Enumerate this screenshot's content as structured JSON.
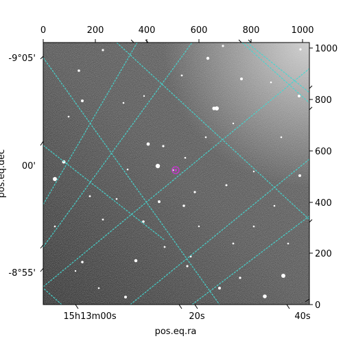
{
  "image": {
    "description_free": true,
    "colors": {
      "grid": "#45d6d0",
      "marker": "#c03ac8",
      "background_dark": "#2e2e2e",
      "background_light": "#b9b9b9"
    }
  },
  "axes": {
    "xlabel": "pos.eq.ra",
    "ylabel": "pos.eq.dec",
    "bottom_ticks": [
      "15h13m00s",
      "20s",
      "40s"
    ],
    "left_ticks": [
      "-9°05'",
      "00'",
      "-8°55'"
    ],
    "top_ticks": [
      "0",
      "200",
      "400",
      "600",
      "800",
      "1000"
    ],
    "right_ticks": [
      "0",
      "200",
      "400",
      "600",
      "800",
      "1000"
    ],
    "pixel_range": [
      0,
      1024
    ]
  },
  "target_marker": {
    "shape": "circle",
    "color_name": "magenta"
  }
}
